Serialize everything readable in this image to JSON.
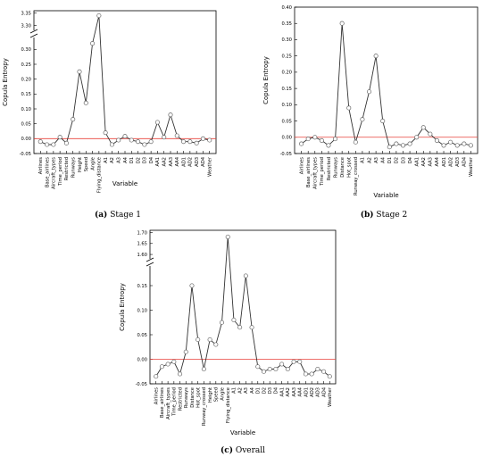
{
  "chart_data": [
    {
      "type": "line",
      "caption_letter": "(a)",
      "caption_text": "Stage 1",
      "xlabel": "Variable",
      "ylabel": "Copula Entropy",
      "categories": [
        "Airlines",
        "Base_airlines",
        "Aircraft_types",
        "Time_period",
        "Restricted",
        "Runways",
        "Height",
        "Speed",
        "Angle",
        "Flying_distance",
        "A1",
        "A2",
        "A3",
        "A4",
        "D1",
        "D2",
        "D3",
        "D4",
        "AA1",
        "AA2",
        "AA3",
        "AA4",
        "AD1",
        "AD2",
        "AD3",
        "AD4",
        "Weather"
      ],
      "values": [
        -0.01,
        -0.02,
        -0.02,
        0.005,
        -0.015,
        0.065,
        0.225,
        0.12,
        0.32,
        3.34,
        0.02,
        -0.02,
        -0.005,
        0.008,
        -0.005,
        -0.01,
        -0.02,
        -0.01,
        0.055,
        0.005,
        0.08,
        0.01,
        -0.01,
        -0.01,
        -0.015,
        0.0,
        -0.005
      ],
      "y_ticks_lower": [
        "-0.05",
        "0.00",
        "0.05",
        "0.10",
        "0.15",
        "0.20",
        "0.25",
        "0.30"
      ],
      "y_ticks_upper": [
        "3.30",
        "3.35"
      ],
      "lower_range": [
        -0.05,
        0.34
      ],
      "upper_range": [
        3.28,
        3.36
      ],
      "reference_line": 0,
      "line_color": "#333333",
      "marker_color": "#666666",
      "reference_color": "#e8403a"
    },
    {
      "type": "line",
      "caption_letter": "(b)",
      "caption_text": "Stage 2",
      "xlabel": "Variable",
      "ylabel": "Copula Entropy",
      "categories": [
        "Airlines",
        "Base_airlines",
        "Aircraft_types",
        "Time_period",
        "Restricted",
        "Runways",
        "Distance",
        "Hot_spot",
        "Runway_crossed",
        "A1",
        "A2",
        "A3",
        "A4",
        "D1",
        "D2",
        "D3",
        "D4",
        "AA1",
        "AA2",
        "AA3",
        "AA4",
        "AD1",
        "AD2",
        "AD3",
        "AD4",
        "Weather"
      ],
      "values": [
        -0.02,
        -0.005,
        0.0,
        -0.01,
        -0.025,
        -0.005,
        0.35,
        0.09,
        -0.015,
        0.055,
        0.14,
        0.25,
        0.05,
        -0.03,
        -0.02,
        -0.025,
        -0.02,
        0.0,
        0.03,
        0.01,
        -0.01,
        -0.025,
        -0.015,
        -0.025,
        -0.02,
        -0.025
      ],
      "y_ticks": [
        "-0.05",
        "0.00",
        "0.05",
        "0.10",
        "0.15",
        "0.20",
        "0.25",
        "0.30",
        "0.35",
        "0.40"
      ],
      "ylim": [
        -0.05,
        0.4
      ],
      "reference_line": 0,
      "line_color": "#333333",
      "marker_color": "#666666",
      "reference_color": "#e8403a"
    },
    {
      "type": "line",
      "caption_letter": "(c)",
      "caption_text": "Overall",
      "xlabel": "Variable",
      "ylabel": "Copula Entropy",
      "categories": [
        "Airlines",
        "Base_airlines",
        "Aircraft_types",
        "Time_period",
        "Restricted",
        "Runways",
        "Distance",
        "Hot_spot",
        "Runway_crossed",
        "Height",
        "Speed",
        "Angle",
        "Flying_distance",
        "A1",
        "A2",
        "A3",
        "A4",
        "D1",
        "D2",
        "D3",
        "D4",
        "AA1",
        "AA2",
        "AA3",
        "AA4",
        "AD1",
        "AD2",
        "AD3",
        "AD4",
        "Weather"
      ],
      "values": [
        -0.035,
        -0.015,
        -0.01,
        -0.005,
        -0.03,
        0.015,
        0.15,
        0.04,
        -0.02,
        0.04,
        0.03,
        0.075,
        1.68,
        0.08,
        0.065,
        0.17,
        0.065,
        -0.015,
        -0.025,
        -0.02,
        -0.02,
        -0.01,
        -0.02,
        -0.005,
        -0.005,
        -0.03,
        -0.03,
        -0.02,
        -0.025,
        -0.035
      ],
      "y_ticks_lower": [
        "-0.05",
        "0.00",
        "0.05",
        "0.10",
        "0.15"
      ],
      "y_ticks_upper": [
        "1.60",
        "1.65",
        "1.70"
      ],
      "lower_range": [
        -0.05,
        0.19
      ],
      "upper_range": [
        1.58,
        1.71
      ],
      "reference_line": 0,
      "line_color": "#333333",
      "marker_color": "#666666",
      "reference_color": "#e8403a"
    }
  ]
}
